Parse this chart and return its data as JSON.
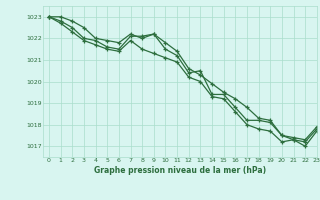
{
  "title": "Graphe pression niveau de la mer (hPa)",
  "bg_color": "#d8f5f0",
  "grid_color": "#aaddcc",
  "line_color": "#2d6e3e",
  "xlim": [
    -0.5,
    23
  ],
  "ylim": [
    1016.5,
    1023.5
  ],
  "yticks": [
    1017,
    1018,
    1019,
    1020,
    1021,
    1022,
    1023
  ],
  "xticks": [
    0,
    1,
    2,
    3,
    4,
    5,
    6,
    7,
    8,
    9,
    10,
    11,
    12,
    13,
    14,
    15,
    16,
    17,
    18,
    19,
    20,
    21,
    22,
    23
  ],
  "series1": [
    1023.0,
    1023.0,
    1022.8,
    1022.5,
    1022.0,
    1021.9,
    1021.8,
    1022.2,
    1022.0,
    1022.2,
    1021.8,
    1021.4,
    1020.6,
    1020.3,
    1019.9,
    1019.5,
    1019.2,
    1018.8,
    1018.3,
    1018.2,
    1017.5,
    1017.4,
    1017.3,
    1017.9
  ],
  "series2": [
    1023.0,
    1022.8,
    1022.5,
    1022.0,
    1021.9,
    1021.6,
    1021.5,
    1022.1,
    1022.1,
    1022.2,
    1021.5,
    1021.2,
    1020.4,
    1020.5,
    1019.4,
    1019.4,
    1018.8,
    1018.2,
    1018.2,
    1018.1,
    1017.5,
    1017.3,
    1017.2,
    1017.8
  ],
  "series3": [
    1023.0,
    1022.7,
    1022.3,
    1021.9,
    1021.7,
    1021.5,
    1021.4,
    1021.9,
    1021.5,
    1021.3,
    1021.1,
    1020.9,
    1020.2,
    1020.0,
    1019.3,
    1019.2,
    1018.6,
    1018.0,
    1017.8,
    1017.7,
    1017.2,
    1017.3,
    1017.0,
    1017.7
  ],
  "title_fontsize": 5.5,
  "tick_fontsize": 4.5,
  "linewidth": 0.9,
  "markersize": 3.0
}
